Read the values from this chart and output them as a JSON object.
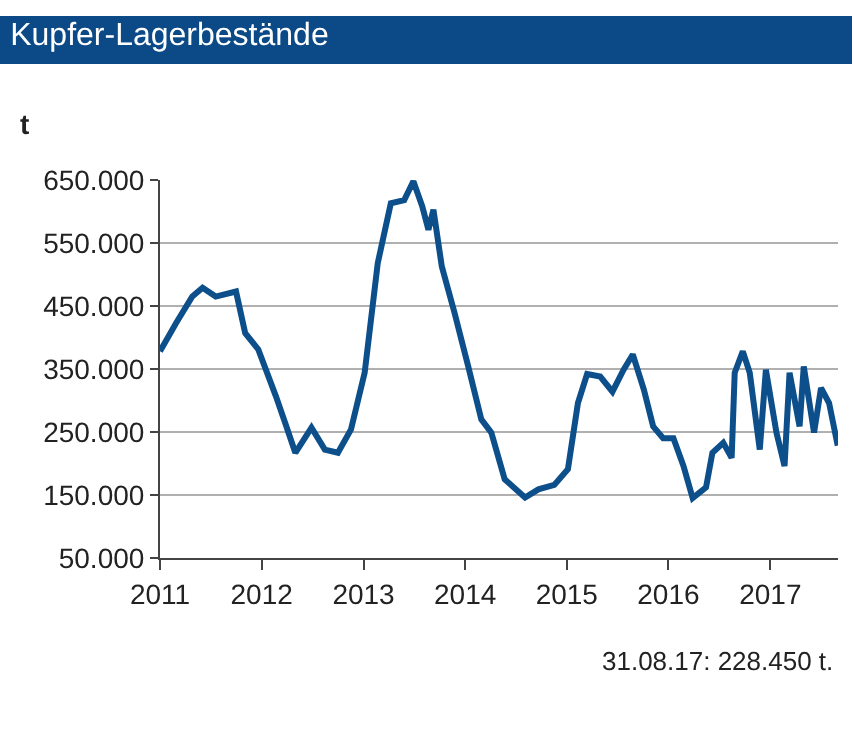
{
  "chart_data": {
    "type": "line",
    "title": "Kupfer-Lagerbestände",
    "ylabel": "t",
    "x": [
      "2011-01-01",
      "2011-02-28",
      "2011-04-27",
      "2011-06-03",
      "2011-07-20",
      "2011-10-01",
      "2011-11-03",
      "2011-12-20",
      "2012-02-21",
      "2012-03-25",
      "2012-05-01",
      "2012-06-28",
      "2012-08-15",
      "2012-10-01",
      "2012-11-17",
      "2013-01-05",
      "2013-02-21",
      "2013-04-09",
      "2013-05-27",
      "2013-06-29",
      "2013-07-31",
      "2013-08-22",
      "2013-09-09",
      "2013-10-09",
      "2013-11-24",
      "2014-01-12",
      "2014-02-28",
      "2014-04-05",
      "2014-05-23",
      "2014-08-04",
      "2014-09-21",
      "2014-11-17",
      "2015-01-05",
      "2015-02-10",
      "2015-03-15",
      "2015-05-01",
      "2015-06-14",
      "2015-07-24",
      "2015-08-26",
      "2015-10-05",
      "2015-11-07",
      "2015-12-13",
      "2016-01-19",
      "2016-02-24",
      "2016-03-28",
      "2016-05-15",
      "2016-06-07",
      "2016-07-16",
      "2016-08-15",
      "2016-08-26",
      "2016-09-24",
      "2016-10-19",
      "2016-11-24",
      "2016-12-16",
      "2017-01-23",
      "2017-02-21",
      "2017-03-11",
      "2017-04-16",
      "2017-05-01",
      "2017-06-07",
      "2017-07-02",
      "2017-07-31",
      "2017-08-31"
    ],
    "series": [
      {
        "color": "#0d4f8b",
        "values": [
          378000,
          423000,
          465000,
          479000,
          465000,
          473000,
          407000,
          381000,
          307000,
          265000,
          217000,
          257000,
          222000,
          217000,
          254000,
          344000,
          518000,
          613000,
          618000,
          648000,
          608000,
          571000,
          603000,
          513000,
          439000,
          354000,
          270000,
          249000,
          175000,
          146000,
          159000,
          166000,
          191000,
          296000,
          342000,
          338000,
          314000,
          349000,
          373000,
          317000,
          259000,
          240000,
          240000,
          196000,
          145000,
          162000,
          217000,
          233000,
          209000,
          344000,
          378000,
          344000,
          222000,
          349000,
          249000,
          196000,
          344000,
          259000,
          354000,
          249000,
          320000,
          296000,
          228450
        ]
      }
    ],
    "xlim": [
      "2011-01-01",
      "2017-09-01"
    ],
    "xticks": [
      {
        "value": "2011-01-01",
        "label": "2011"
      },
      {
        "value": "2012-01-01",
        "label": "2012"
      },
      {
        "value": "2013-01-01",
        "label": "2013"
      },
      {
        "value": "2014-01-01",
        "label": "2014"
      },
      {
        "value": "2015-01-01",
        "label": "2015"
      },
      {
        "value": "2016-01-01",
        "label": "2016"
      },
      {
        "value": "2017-01-01",
        "label": "2017"
      }
    ],
    "ylim": [
      50000,
      650000
    ],
    "yticks": [
      {
        "value": 50000,
        "label": "50.000"
      },
      {
        "value": 150000,
        "label": "150.000"
      },
      {
        "value": 250000,
        "label": "250.000"
      },
      {
        "value": 350000,
        "label": "350.000"
      },
      {
        "value": 450000,
        "label": "450.000"
      },
      {
        "value": 550000,
        "label": "550.000"
      },
      {
        "value": 650000,
        "label": "650.000"
      }
    ],
    "grid": "y",
    "marker": "none",
    "line_style": "solid",
    "annotations": [
      "31.08.17: 228.450 t."
    ]
  }
}
